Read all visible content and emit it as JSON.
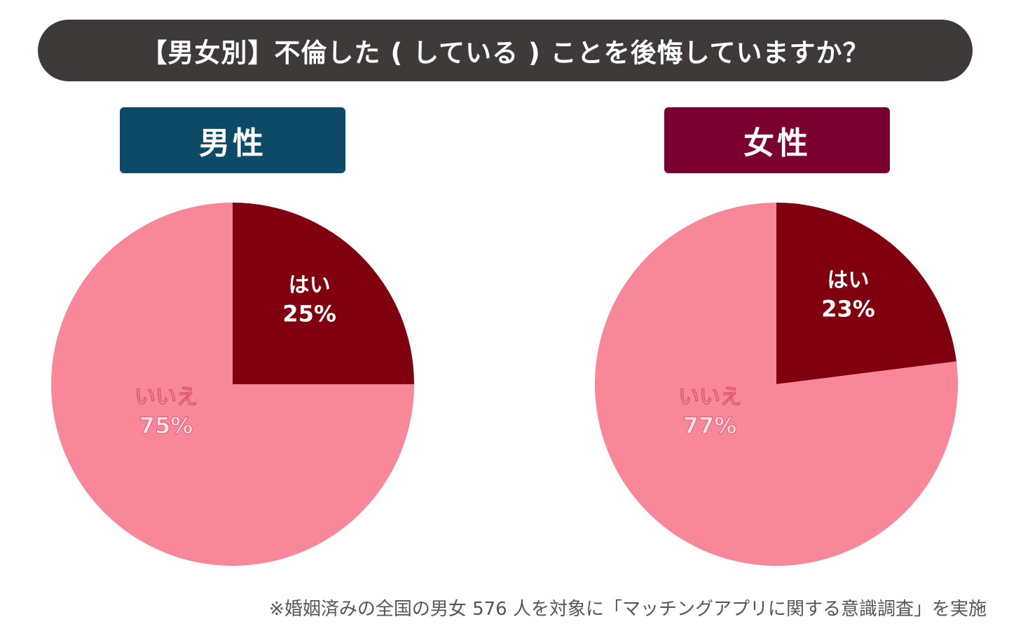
{
  "title": "【男女別】不倫した ( している ) ことを後悔していますか？",
  "colors": {
    "title_bg": "#3e3a39",
    "male": "#0d4a68",
    "female": "#7a0030",
    "yes": "#800010",
    "no": "#f8879a"
  },
  "chart_data": [
    {
      "type": "pie",
      "title": "男性",
      "slices": [
        {
          "label": "はい",
          "value": 25,
          "value_label": "25%"
        },
        {
          "label": "いいえ",
          "value": 75,
          "value_label": "75%"
        }
      ]
    },
    {
      "type": "pie",
      "title": "女性",
      "slices": [
        {
          "label": "はい",
          "value": 23,
          "value_label": "23%"
        },
        {
          "label": "いいえ",
          "value": 77,
          "value_label": "77%"
        }
      ]
    }
  ],
  "footnote": "※婚姻済みの全国の男女 576 人を対象に「マッチングアプリに関する意識調査」を実施"
}
